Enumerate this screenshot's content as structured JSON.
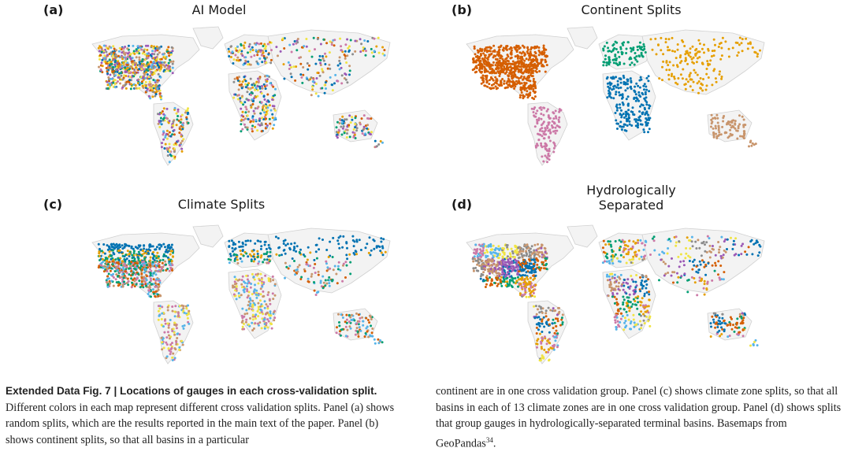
{
  "figure": {
    "panels": [
      {
        "label": "(a)",
        "title": "AI Model",
        "scheme": "random"
      },
      {
        "label": "(b)",
        "title": "Continent Splits",
        "scheme": "continent"
      },
      {
        "label": "(c)",
        "title": "Climate Splits",
        "scheme": "climate"
      },
      {
        "label": "(d)",
        "title_line1": "Hydrologically",
        "title_line2": "Separated",
        "scheme": "hydro"
      }
    ],
    "colors": {
      "land": "#f3f3f3",
      "border": "#d0d0d0",
      "continent": {
        "north_america": "#d55e00",
        "south_america": "#cc79a7",
        "africa": "#0072b2",
        "europe": "#009e73",
        "asia": "#e69f00",
        "oceania": "#c8956c"
      },
      "palette": [
        "#0072b2",
        "#d55e00",
        "#009e73",
        "#e69f00",
        "#cc79a7",
        "#56b4e9",
        "#f0e442",
        "#8c8c8c",
        "#c8956c",
        "#9b59b6"
      ]
    }
  },
  "caption": {
    "bold": "Extended Data Fig. 7 | Locations of gauges in each cross-validation split.",
    "left_text": "Different colors in each map represent different cross validation splits. Panel (a) shows random splits, which are the results reported in the main text of the paper. Panel (b) shows continent splits, so that all basins in a particular",
    "right_text": "continent are in one cross validation group. Panel (c) shows climate zone splits, so that all basins in each of 13 climate zones are in one cross validation group. Panel (d) shows splits that group gauges in hydrologically-separated terminal basins. Basemaps from GeoPandas",
    "superscript": "34",
    "end": "."
  }
}
